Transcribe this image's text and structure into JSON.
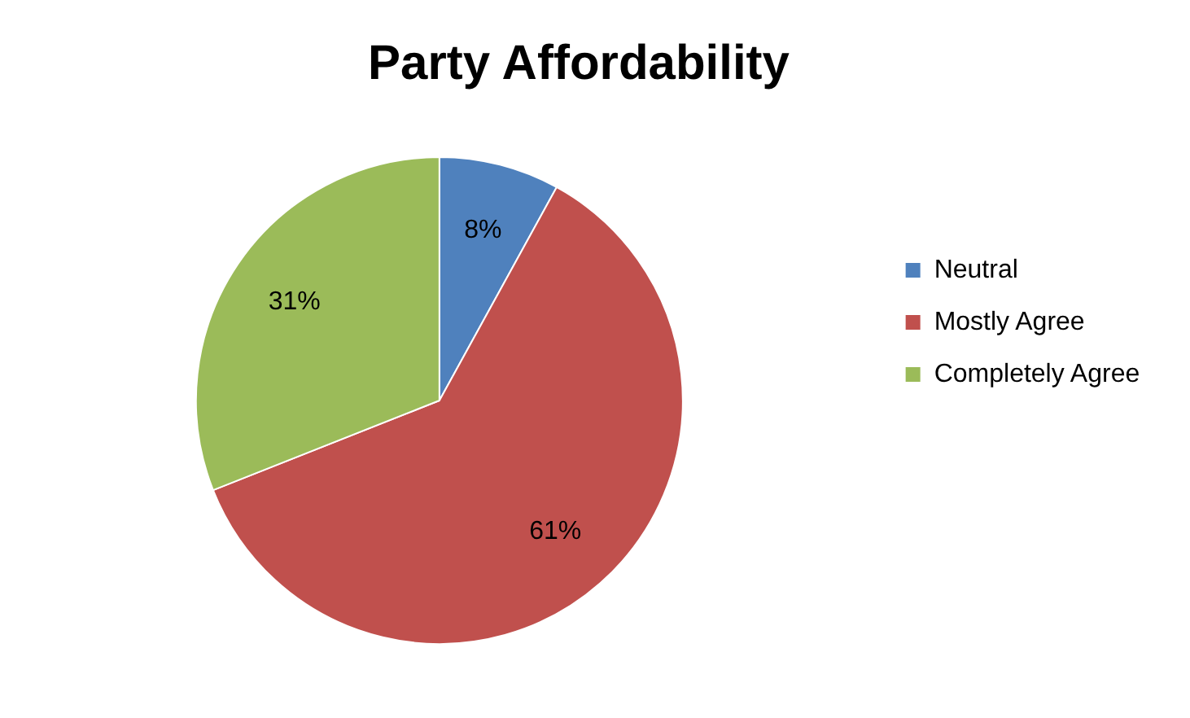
{
  "chart_data": {
    "type": "pie",
    "title": "Party Affordability",
    "categories": [
      "Neutral",
      "Mostly Agree",
      "Completely Agree"
    ],
    "values": [
      8,
      61,
      31
    ],
    "colors": [
      "#4f81bd",
      "#c0504d",
      "#9bbb59"
    ],
    "value_labels": [
      "8%",
      "61%",
      "31%"
    ],
    "legend": "right"
  }
}
